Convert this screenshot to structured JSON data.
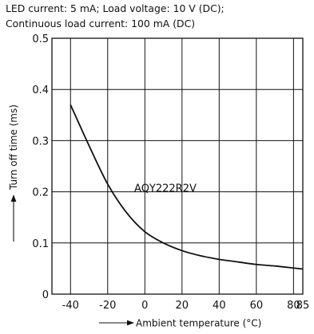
{
  "conditions": {
    "line1": "LED current: 5 mA; Load voltage: 10 V (DC);",
    "line2": "Continuous load current: 100 mA (DC)"
  },
  "chart_data": {
    "type": "line",
    "title": "",
    "xlabel": "Ambient temperature (°C)",
    "ylabel": "Turn off time (ms)",
    "xlim": [
      -50,
      85
    ],
    "ylim": [
      0,
      0.5
    ],
    "grid": true,
    "x_ticks": [
      -40,
      -20,
      0,
      20,
      40,
      60,
      80,
      85
    ],
    "x_tick_labels": [
      "-40",
      "-20",
      "0",
      "20",
      "40",
      "60",
      "80",
      "85"
    ],
    "y_ticks": [
      0,
      0.1,
      0.2,
      0.3,
      0.4,
      0.5
    ],
    "y_tick_labels": [
      "0",
      "0.1",
      "0.2",
      "0.3",
      "0.4",
      "0.5"
    ],
    "series": [
      {
        "name": "AQY222R2V",
        "x": [
          -40,
          -30,
          -20,
          -10,
          0,
          10,
          20,
          30,
          40,
          50,
          60,
          70,
          80,
          85
        ],
        "y": [
          0.37,
          0.29,
          0.215,
          0.16,
          0.122,
          0.1,
          0.085,
          0.075,
          0.068,
          0.063,
          0.058,
          0.055,
          0.051,
          0.049
        ]
      }
    ],
    "colors": {
      "line": "#111111",
      "grid": "#111111"
    }
  }
}
